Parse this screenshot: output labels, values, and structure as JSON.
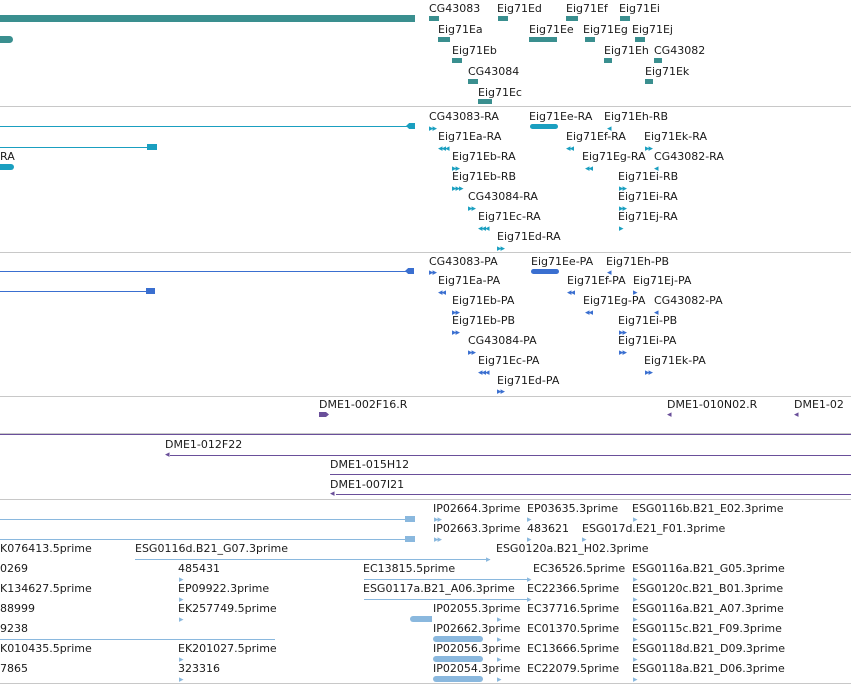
{
  "colors": {
    "gene": "#3a8f8f",
    "transcript_cdna": "#1a9fc0",
    "protein": "#3a6fd0",
    "bac": "#6a4f9a",
    "est": "#8ab8de",
    "divider": "#c8c8c8"
  },
  "tracks": {
    "genes": {
      "labels": [
        "CG43083",
        "Eig71Ed",
        "Eig71Ef",
        "Eig71Ei",
        "Eig71Ea",
        "Eig71Ee",
        "Eig71Eg",
        "Eig71Ej",
        "Eig71Eb",
        "Eig71Eh",
        "CG43082",
        "CG43084",
        "Eig71Ek",
        "Eig71Ec"
      ]
    },
    "transcripts": {
      "labels": [
        "RA",
        "CG43083-RA",
        "Eig71Ee-RA",
        "Eig71Eh-RB",
        "Eig71Ea-RA",
        "Eig71Ef-RA",
        "Eig71Ek-RA",
        "Eig71Eb-RA",
        "Eig71Eg-RA",
        "CG43082-RA",
        "Eig71Eb-RB",
        "Eig71Ei-RB",
        "CG43084-RA",
        "Eig71Ei-RA",
        "Eig71Ec-RA",
        "Eig71Ej-RA",
        "Eig71Ed-RA"
      ]
    },
    "proteins": {
      "labels": [
        "CG43083-PA",
        "Eig71Ee-PA",
        "Eig71Eh-PB",
        "Eig71Ea-PA",
        "Eig71Ef-PA",
        "Eig71Ej-PA",
        "Eig71Eb-PA",
        "Eig71Eg-PA",
        "CG43082-PA",
        "Eig71Eb-PB",
        "Eig71Ei-PB",
        "CG43084-PA",
        "Eig71Ei-PA",
        "Eig71Ec-PA",
        "Eig71Ek-PA",
        "Eig71Ed-PA"
      ]
    },
    "bac_ends": {
      "labels": [
        "DME1-002F16.R",
        "DME1-010N02.R",
        "DME1-02"
      ]
    },
    "bacs": {
      "labels": [
        "DME1-012F22",
        "DME1-015H12",
        "DME1-007I21"
      ]
    },
    "ests": {
      "labels": [
        "IP02664.3prime",
        "EP03635.3prime",
        "ESG0116b.B21_E02.3prime",
        "IP02663.3prime",
        "483621",
        "ESG017d.E21_F01.3prime",
        "K076413.5prime",
        "ESG0116d.B21_G07.3prime",
        "ESG0120a.B21_H02.3prime",
        "0269",
        "485431",
        "EC13815.5prime",
        "EC36526.5prime",
        "ESG0116a.B21_G05.3prime",
        "K134627.5prime",
        "EP09922.3prime",
        "ESG0117a.B21_A06.3prime",
        "EC22366.5prime",
        "ESG0120c.B21_B01.3prime",
        "88999",
        "EK257749.5prime",
        "IP02055.3prime",
        "EC37716.5prime",
        "ESG0116a.B21_A07.3prime",
        "9238",
        "IP02662.3prime",
        "EC01370.5prime",
        "ESG0115c.B21_F09.3prime",
        "K010435.5prime",
        "EK201027.5prime",
        "IP02056.3prime",
        "EC13666.5prime",
        "ESG0118d.B21_D09.3prime",
        "7865",
        "323316",
        "IP02054.3prime",
        "EC22079.5prime",
        "ESG0118a.B21_D06.3prime"
      ]
    }
  }
}
